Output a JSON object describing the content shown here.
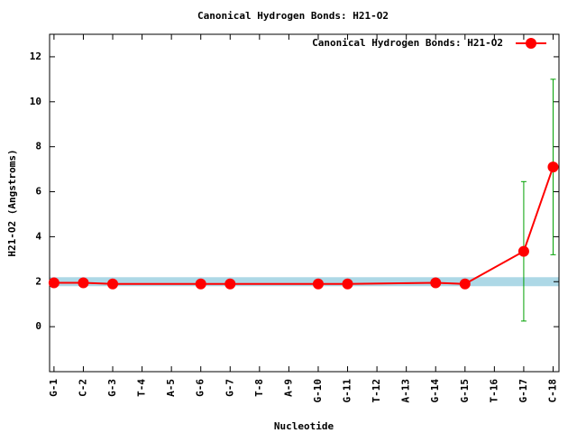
{
  "chart_data": {
    "type": "line",
    "title": "Canonical Hydrogen Bonds: H21-O2",
    "x_label": "Nucleotide",
    "y_label": "H21-O2 (Angstroms)",
    "xlim": [
      0.85,
      18.2
    ],
    "xticks": [
      {
        "value": 1,
        "label": "G-1"
      },
      {
        "value": 2,
        "label": "C-2"
      },
      {
        "value": 3,
        "label": "G-3"
      },
      {
        "value": 4,
        "label": "T-4"
      },
      {
        "value": 5,
        "label": "A-5"
      },
      {
        "value": 6,
        "label": "G-6"
      },
      {
        "value": 7,
        "label": "G-7"
      },
      {
        "value": 8,
        "label": "T-8"
      },
      {
        "value": 9,
        "label": "A-9"
      },
      {
        "value": 10,
        "label": "G-10"
      },
      {
        "value": 11,
        "label": "G-11"
      },
      {
        "value": 12,
        "label": "T-12"
      },
      {
        "value": 13,
        "label": "A-13"
      },
      {
        "value": 14,
        "label": "G-14"
      },
      {
        "value": 15,
        "label": "G-15"
      },
      {
        "value": 16,
        "label": "T-16"
      },
      {
        "value": 17,
        "label": "G-17"
      },
      {
        "value": 18,
        "label": "C-18"
      }
    ],
    "ylim": [
      -2,
      13
    ],
    "yticks": [
      0,
      2,
      4,
      6,
      8,
      10,
      12
    ],
    "reference_band": {
      "range": [
        1.8,
        2.2
      ],
      "color": "#add8e6"
    },
    "legend": "top-right",
    "series": [
      {
        "name": "Canonical Hydrogen Bonds: H21-O2",
        "color": "#ff0000",
        "error_color": "#00a000",
        "x": [
          1,
          2,
          3,
          6,
          7,
          10,
          11,
          14,
          15,
          17,
          18
        ],
        "values": [
          1.95,
          1.95,
          1.9,
          1.9,
          1.9,
          1.9,
          1.9,
          1.95,
          1.9,
          3.35,
          7.1
        ],
        "errors": [
          null,
          null,
          null,
          null,
          null,
          null,
          null,
          null,
          null,
          3.1,
          3.9
        ]
      }
    ]
  }
}
